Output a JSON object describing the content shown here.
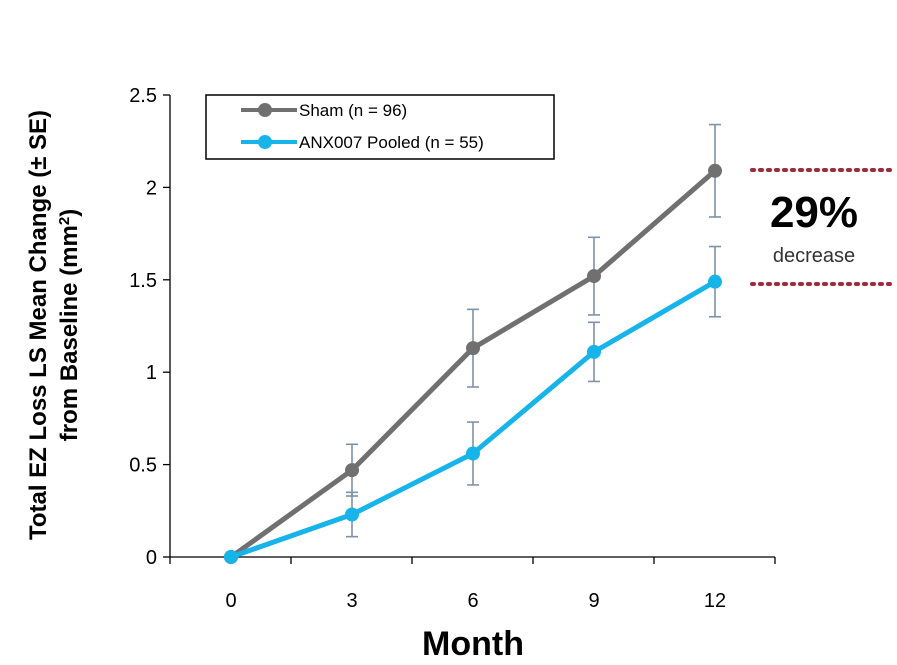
{
  "chart_data": {
    "type": "line",
    "x": [
      0,
      3,
      6,
      9,
      12
    ],
    "x_ticks": [
      "0",
      "3",
      "6",
      "9",
      "12"
    ],
    "xlabel": "Month",
    "ylabel_line1": "Total EZ Loss LS Mean Change (± SE)",
    "ylabel_line2": "from Baseline (mm",
    "ylabel_sup": "2",
    "ylabel_close": ")",
    "ylim": [
      0,
      2.5
    ],
    "y_ticks": [
      "0",
      "0.5",
      "1",
      "1.5",
      "2",
      "2.5"
    ],
    "y_tick_values": [
      0,
      0.5,
      1,
      1.5,
      2,
      2.5
    ],
    "grid": false,
    "legend_position": "top-left",
    "series": [
      {
        "name": "Sham (n = 96)",
        "color": "#707070",
        "values": [
          0,
          0.47,
          1.13,
          1.52,
          2.09
        ],
        "se_low": [
          0,
          0.33,
          0.92,
          1.31,
          1.84
        ],
        "se_high": [
          0,
          0.61,
          1.34,
          1.73,
          2.34
        ]
      },
      {
        "name": "ANX007 Pooled (n = 55)",
        "color": "#17b4ea",
        "values": [
          0,
          0.23,
          0.56,
          1.11,
          1.49
        ],
        "se_low": [
          0,
          0.11,
          0.39,
          0.95,
          1.3
        ],
        "se_high": [
          0,
          0.35,
          0.73,
          1.27,
          1.68
        ]
      }
    ],
    "error_bar_color": "#7f93a8",
    "annotation": {
      "percent": "29%",
      "text": "decrease",
      "line_color": "#a0293e"
    }
  }
}
